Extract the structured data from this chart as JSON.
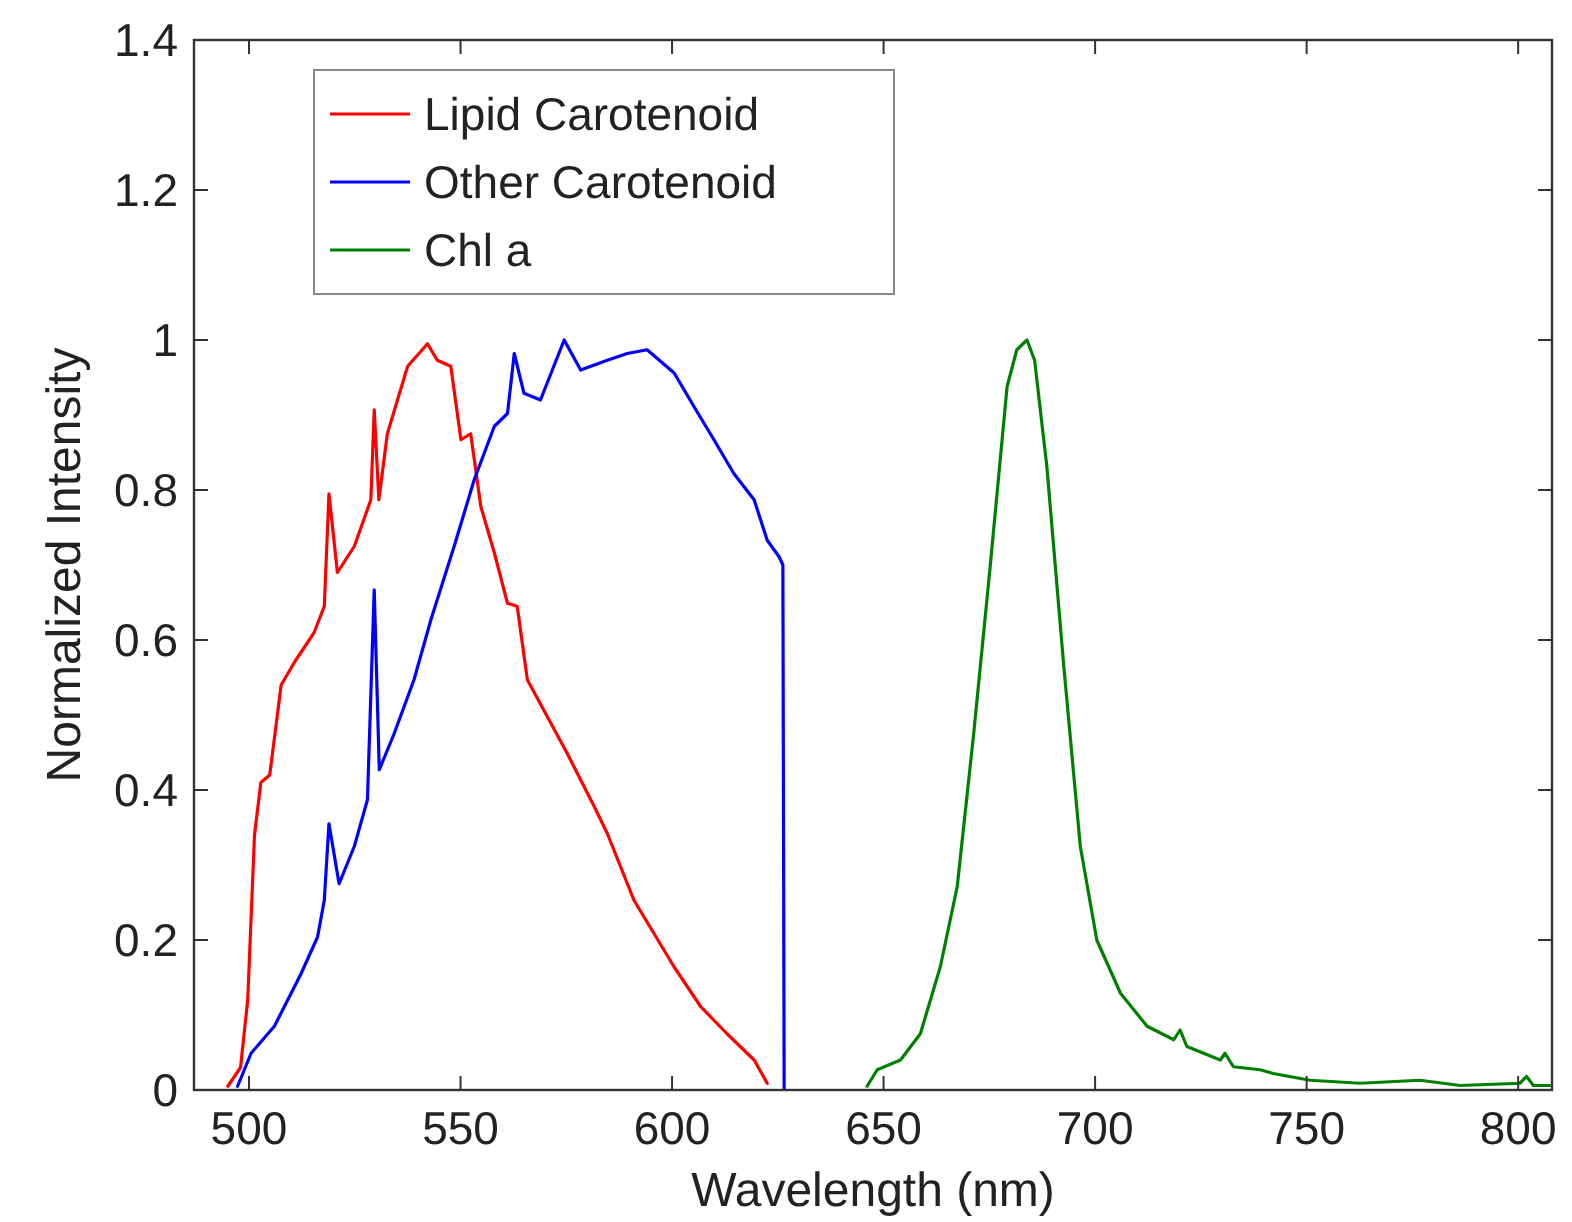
{
  "chart_data": {
    "type": "line",
    "xlabel": "Wavelength (nm)",
    "ylabel": "Normalized Intensity",
    "xlim": [
      487,
      808
    ],
    "ylim": [
      0,
      1.4
    ],
    "xticks": [
      500,
      550,
      600,
      650,
      700,
      750,
      800
    ],
    "yticks": [
      0,
      0.2,
      0.4,
      0.6,
      0.8,
      1,
      1.2,
      1.4
    ],
    "grid": false,
    "legend": "top left",
    "marker": "none",
    "line_style": "solid",
    "series": [
      {
        "name": "Lipid Carotenoid",
        "color": "#ff0000",
        "x": [
          495,
          498,
          499.7,
          501.3,
          502.8,
          504.9,
          507.6,
          510.7,
          515.4,
          517.8,
          518.9,
          520.9,
          524.9,
          528.8,
          529.6,
          530.7,
          532.7,
          537.5,
          542.2,
          544.5,
          547.7,
          550.1,
          552.4,
          554.8,
          558,
          561.1,
          563.4,
          565.8,
          570.5,
          575.2,
          581.6,
          584.7,
          591,
          600.5,
          606.8,
          613,
          619.4,
          622.5
        ],
        "values": [
          0.005,
          0.03,
          0.12,
          0.34,
          0.41,
          0.42,
          0.54,
          0.57,
          0.61,
          0.645,
          0.795,
          0.69,
          0.725,
          0.787,
          0.907,
          0.787,
          0.875,
          0.965,
          0.995,
          0.973,
          0.965,
          0.867,
          0.875,
          0.778,
          0.716,
          0.649,
          0.645,
          0.547,
          0.498,
          0.449,
          0.378,
          0.342,
          0.253,
          0.164,
          0.111,
          0.075,
          0.04,
          0.009
        ]
      },
      {
        "name": "Other Carotenoid",
        "color": "#0000ff",
        "x": [
          497.3,
          500.5,
          506,
          512.3,
          516.2,
          517.8,
          518.9,
          521.3,
          524.9,
          528,
          529.6,
          530.8,
          534.3,
          539,
          543,
          548.5,
          553.2,
          558,
          561.1,
          562.7,
          565,
          568.9,
          574.5,
          578.4,
          584.7,
          589.4,
          594.1,
          600.5,
          605.2,
          609.9,
          614.6,
          619.4,
          622.5,
          625.3,
          626.2,
          626.5
        ],
        "values": [
          0.005,
          0.049,
          0.085,
          0.155,
          0.204,
          0.253,
          0.355,
          0.275,
          0.325,
          0.387,
          0.667,
          0.427,
          0.475,
          0.547,
          0.627,
          0.725,
          0.813,
          0.885,
          0.902,
          0.982,
          0.929,
          0.92,
          1.0,
          0.96,
          0.973,
          0.982,
          0.987,
          0.956,
          0.911,
          0.867,
          0.822,
          0.787,
          0.733,
          0.711,
          0.7,
          0
        ]
      },
      {
        "name": "Chl a",
        "color": "#008000",
        "x": [
          646.1,
          648.5,
          654,
          658.7,
          663.4,
          667.4,
          671.3,
          675.2,
          679.2,
          681.5,
          683.9,
          685.7,
          688.6,
          692.6,
          696.5,
          700.4,
          706,
          712.3,
          718.6,
          720.1,
          721.7,
          729.6,
          730.7,
          732.7,
          739,
          742.1,
          750.8,
          762.6,
          776.8,
          786.3,
          800.4,
          802,
          803.6,
          807.5
        ],
        "values": [
          0.005,
          0.027,
          0.04,
          0.075,
          0.164,
          0.271,
          0.475,
          0.698,
          0.938,
          0.987,
          1.0,
          0.973,
          0.831,
          0.565,
          0.325,
          0.2,
          0.129,
          0.085,
          0.067,
          0.08,
          0.058,
          0.04,
          0.049,
          0.031,
          0.027,
          0.022,
          0.013,
          0.009,
          0.013,
          0.006,
          0.009,
          0.018,
          0.006,
          0.006
        ]
      }
    ]
  }
}
